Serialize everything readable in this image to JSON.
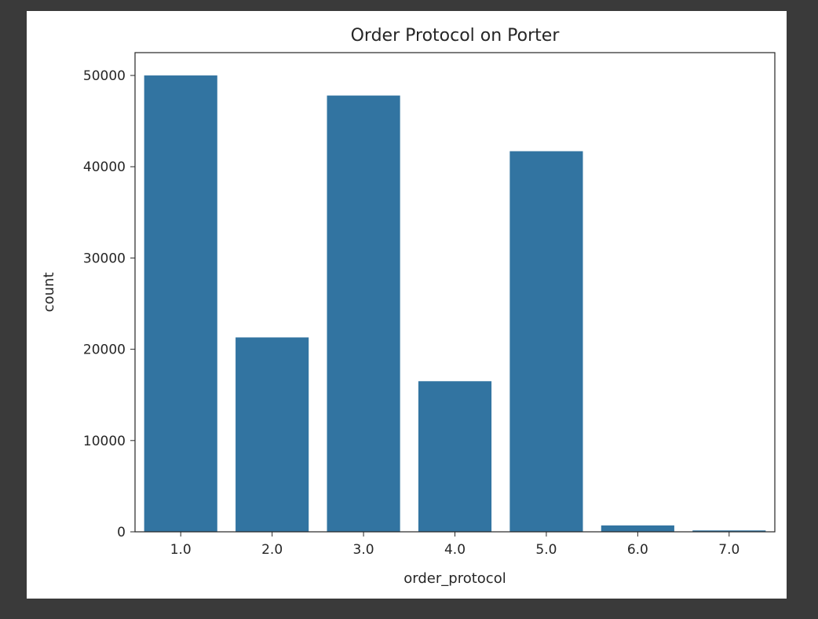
{
  "chart_data": {
    "type": "bar",
    "title": "Order Protocol on Porter",
    "xlabel": "order_protocol",
    "ylabel": "count",
    "categories": [
      "1.0",
      "2.0",
      "3.0",
      "4.0",
      "5.0",
      "6.0",
      "7.0"
    ],
    "values": [
      50000,
      21300,
      47800,
      16500,
      41700,
      700,
      150
    ],
    "ylim": [
      0,
      52500
    ],
    "yticks": [
      "0",
      "10000",
      "20000",
      "30000",
      "40000",
      "50000"
    ],
    "bar_color": "#3274a1",
    "grid": false
  }
}
